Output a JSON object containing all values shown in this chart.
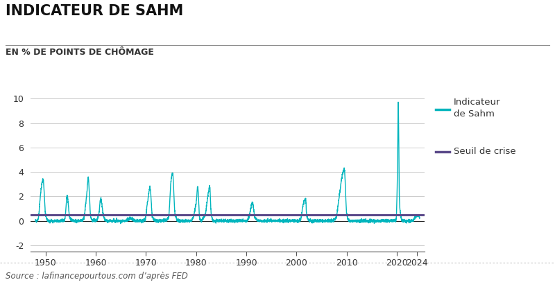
{
  "title": "INDICATEUR DE SAHM",
  "subtitle": "EN % DE POINTS DE CHÔMAGE",
  "source": "Source : lafinancepourtous.com d’après FED",
  "legend_label1_line1": "Indicateur",
  "legend_label1_line2": "de Sahm",
  "legend_label2": "Seuil de crise",
  "line_color": "#00B5BD",
  "threshold_color": "#5B4A8A",
  "threshold_value": 0.5,
  "xlim": [
    1947.0,
    2025.5
  ],
  "ylim": [
    -2.5,
    10.5
  ],
  "yticks": [
    -2,
    0,
    2,
    4,
    6,
    8,
    10
  ],
  "xticks": [
    1950,
    1960,
    1970,
    1980,
    1990,
    2000,
    2010,
    2020,
    2024
  ],
  "background_color": "#ffffff",
  "title_fontsize": 15,
  "subtitle_fontsize": 9,
  "tick_fontsize": 9,
  "source_fontsize": 8.5,
  "line_width": 1.0,
  "threshold_lw": 2.2
}
